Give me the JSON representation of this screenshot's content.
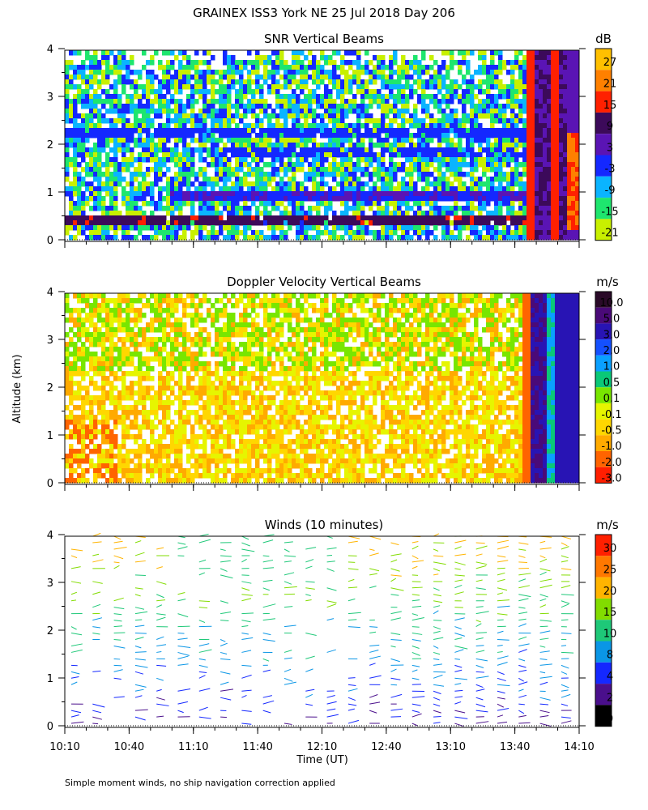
{
  "figure": {
    "title": "GRAINEX ISS3 York NE  25 Jul 2018 Day 206",
    "ylabel": "Altitude (km)",
    "xlabel": "Time (UT)",
    "footnote": "Simple moment winds, no ship navigation correction applied",
    "time_ticks": [
      "10:10",
      "10:40",
      "11:10",
      "11:40",
      "12:10",
      "12:40",
      "13:10",
      "13:40",
      "14:10"
    ]
  },
  "chart_data": [
    {
      "type": "heatmap",
      "title": "SNR Vertical Beams",
      "units": "dB",
      "x_range": [
        "10:10",
        "14:10"
      ],
      "y_range": [
        0,
        4
      ],
      "y_ticks": [
        "0",
        "1",
        "2",
        "3",
        "4"
      ],
      "colorbar": {
        "levels": [
          "27",
          "21",
          "15",
          "9",
          "3",
          "-3",
          "-9",
          "-15",
          "-21"
        ],
        "colors": [
          "#ffc000",
          "#ff8000",
          "#ff2000",
          "#3c0a5a",
          "#5a14b4",
          "#1428ff",
          "#0ab4ff",
          "#1ee66e",
          "#c8f000"
        ]
      },
      "features": [
        {
          "label": "high SNR band",
          "from_km": 0.35,
          "to_km": 0.55
        },
        {
          "label": "layer",
          "from_km": 0.85,
          "to_km": 1.05
        },
        {
          "label": "layer",
          "from_km": 2.2,
          "to_km": 2.4
        },
        {
          "label": "column",
          "from_time": "13:40",
          "to_time": "14:10"
        }
      ]
    },
    {
      "type": "heatmap",
      "title": "Doppler Velocity Vertical Beams",
      "units": "m/s",
      "x_range": [
        "10:10",
        "14:10"
      ],
      "y_range": [
        0,
        4
      ],
      "y_ticks": [
        "0",
        "1",
        "2",
        "3",
        "4"
      ],
      "colorbar": {
        "levels": [
          "10.0",
          "5.0",
          "3.0",
          "2.0",
          "1.0",
          "0.5",
          "0.1",
          "-0.1",
          "-0.5",
          "-1.0",
          "-2.0",
          "-3.0"
        ],
        "colors": [
          "#2a0a28",
          "#4a0a78",
          "#2814b4",
          "#1450ff",
          "#0aa0ff",
          "#0ac878",
          "#78e600",
          "#e6f500",
          "#ffd700",
          "#ffaa00",
          "#ff6400",
          "#ff1e00"
        ]
      }
    },
    {
      "type": "wind_barbs",
      "title": "Winds (10 minutes)",
      "units": "m/s",
      "x_range": [
        "10:10",
        "14:10"
      ],
      "y_range": [
        0,
        4
      ],
      "y_ticks": [
        "0",
        "1",
        "2",
        "3",
        "4"
      ],
      "colorbar": {
        "levels": [
          "30",
          "25",
          "20",
          "15",
          "10",
          "8",
          "4",
          "2",
          "0"
        ],
        "colors": [
          "#ff2000",
          "#ff7800",
          "#ffb400",
          "#82dc00",
          "#1ec878",
          "#0a96e6",
          "#1428ff",
          "#4a0f8c",
          "#000000"
        ]
      }
    }
  ]
}
